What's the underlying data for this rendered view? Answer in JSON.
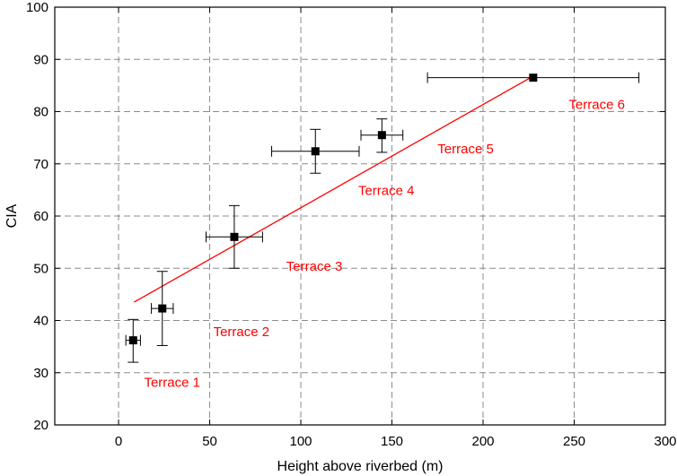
{
  "chart_data": {
    "type": "scatter",
    "title": "",
    "xlabel": "Height above riverbed (m)",
    "ylabel": "CIA",
    "xlim": [
      -35,
      300
    ],
    "ylim": [
      20,
      100
    ],
    "xticks": [
      0,
      50,
      100,
      150,
      200,
      250,
      300
    ],
    "yticks": [
      20,
      30,
      40,
      50,
      60,
      70,
      80,
      90,
      100
    ],
    "grid": true,
    "points": [
      {
        "x": 8,
        "y": 36.2,
        "xerr": [
          4,
          4
        ],
        "yerr": [
          4.2,
          4.0
        ]
      },
      {
        "x": 24,
        "y": 42.3,
        "xerr": [
          6,
          6
        ],
        "yerr": [
          7.1,
          7.1
        ]
      },
      {
        "x": 63.5,
        "y": 56.0,
        "xerr": [
          15.5,
          15.5
        ],
        "yerr": [
          6.0,
          6.0
        ]
      },
      {
        "x": 108,
        "y": 72.4,
        "xerr": [
          24,
          24
        ],
        "yerr": [
          4.2,
          4.2
        ]
      },
      {
        "x": 144.5,
        "y": 75.5,
        "xerr": [
          11.5,
          11.5
        ],
        "yerr": [
          3.3,
          3.1
        ]
      },
      {
        "x": 227.5,
        "y": 86.5,
        "xerr": [
          58,
          58
        ],
        "yerr": [
          0,
          0
        ]
      }
    ],
    "fit_line": {
      "x": [
        8.5,
        227.5
      ],
      "y": [
        43.5,
        86.8
      ],
      "color": "#ff0000"
    },
    "annotations": [
      {
        "text": "Terrace 1",
        "x": 14,
        "y": 27.3
      },
      {
        "text": "Terrace 2",
        "x": 52,
        "y": 37.0
      },
      {
        "text": "Terrace 3",
        "x": 92,
        "y": 49.5
      },
      {
        "text": "Terrace 4",
        "x": 131.5,
        "y": 64.0
      },
      {
        "text": "Terrace 5",
        "x": 175,
        "y": 72.0
      },
      {
        "text": "Terrace 6",
        "x": 247,
        "y": 80.5
      }
    ],
    "colors": {
      "points": "#000000",
      "error_bars": "#000000",
      "fit_line": "#ff0000",
      "annotations": "#ff0000",
      "grid": "#8c8c8c",
      "axes": "#000000"
    }
  }
}
